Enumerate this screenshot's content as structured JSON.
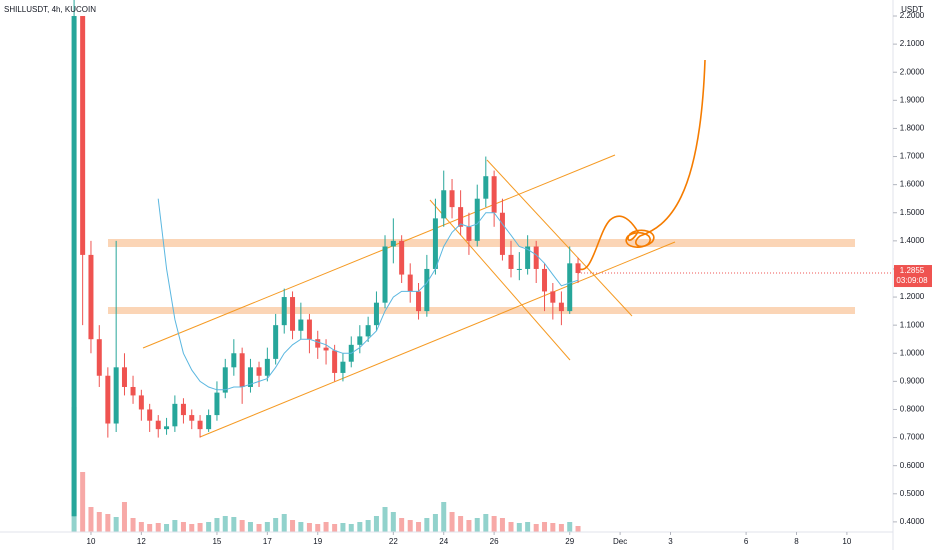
{
  "chart_data": {
    "type": "candlestick",
    "title": "SHILLUSDT, 4h, KUCOIN",
    "currency": "USDT",
    "x": [
      9.33,
      9.67,
      10,
      10.33,
      10.67,
      11,
      11.33,
      11.67,
      12,
      12.33,
      12.67,
      13,
      13.33,
      13.67,
      14,
      14.33,
      14.67,
      15,
      15.33,
      15.67,
      16,
      16.33,
      16.67,
      17,
      17.33,
      17.67,
      18,
      18.33,
      18.67,
      19,
      19.33,
      19.67,
      20,
      20.33,
      20.67,
      21,
      21.33,
      21.67,
      22,
      22.33,
      22.67,
      23,
      23.33,
      23.67,
      24,
      24.33,
      24.67,
      25,
      25.33,
      25.67,
      26,
      26.33,
      26.67,
      27,
      27.33,
      27.67,
      28,
      28.33,
      28.67,
      29,
      29.33
    ],
    "open": [
      0.42,
      2.2,
      1.35,
      1.05,
      0.92,
      0.75,
      0.95,
      0.88,
      0.85,
      0.8,
      0.76,
      0.73,
      0.74,
      0.82,
      0.78,
      0.76,
      0.73,
      0.78,
      0.86,
      0.95,
      1.0,
      0.88,
      0.95,
      0.92,
      0.98,
      1.1,
      1.2,
      1.08,
      1.12,
      1.05,
      1.02,
      1.01,
      0.93,
      0.97,
      1.03,
      1.06,
      1.1,
      1.18,
      1.38,
      1.4,
      1.28,
      1.22,
      1.15,
      1.3,
      1.48,
      1.58,
      1.52,
      1.45,
      1.4,
      1.55,
      1.63,
      1.5,
      1.35,
      1.3,
      1.3,
      1.38,
      1.3,
      1.22,
      1.18,
      1.15,
      1.32
    ],
    "high": [
      2.3,
      2.2,
      1.4,
      1.1,
      0.95,
      1.4,
      1.0,
      0.92,
      0.87,
      0.82,
      0.78,
      0.77,
      0.85,
      0.84,
      0.8,
      0.78,
      0.8,
      0.9,
      0.98,
      1.05,
      1.02,
      0.98,
      0.97,
      1.02,
      1.14,
      1.23,
      1.22,
      1.18,
      1.14,
      1.08,
      1.05,
      1.03,
      1.0,
      1.06,
      1.1,
      1.13,
      1.22,
      1.42,
      1.48,
      1.42,
      1.32,
      1.25,
      1.35,
      1.55,
      1.65,
      1.62,
      1.58,
      1.5,
      1.6,
      1.7,
      1.65,
      1.55,
      1.4,
      1.36,
      1.42,
      1.4,
      1.32,
      1.25,
      1.22,
      1.38,
      1.34
    ],
    "low": [
      0.42,
      1.1,
      1.0,
      0.88,
      0.7,
      0.72,
      0.85,
      0.82,
      0.76,
      0.72,
      0.7,
      0.71,
      0.72,
      0.75,
      0.73,
      0.7,
      0.72,
      0.76,
      0.84,
      0.92,
      0.82,
      0.86,
      0.88,
      0.9,
      0.96,
      1.07,
      1.05,
      1.05,
      1.0,
      0.98,
      0.96,
      0.9,
      0.9,
      0.95,
      1.0,
      1.04,
      1.08,
      1.16,
      1.32,
      1.25,
      1.18,
      1.12,
      1.13,
      1.28,
      1.45,
      1.48,
      1.42,
      1.35,
      1.38,
      1.52,
      1.45,
      1.33,
      1.27,
      1.26,
      1.28,
      1.25,
      1.15,
      1.12,
      1.1,
      1.14,
      1.25
    ],
    "close": [
      2.2,
      1.35,
      1.05,
      0.92,
      0.75,
      0.95,
      0.88,
      0.85,
      0.8,
      0.76,
      0.73,
      0.74,
      0.82,
      0.78,
      0.76,
      0.73,
      0.78,
      0.86,
      0.95,
      1.0,
      0.88,
      0.95,
      0.92,
      0.98,
      1.1,
      1.2,
      1.08,
      1.12,
      1.05,
      1.02,
      1.01,
      0.93,
      0.97,
      1.03,
      1.06,
      1.1,
      1.18,
      1.38,
      1.4,
      1.28,
      1.22,
      1.15,
      1.3,
      1.48,
      1.58,
      1.52,
      1.45,
      1.4,
      1.55,
      1.63,
      1.5,
      1.35,
      1.3,
      1.3,
      1.38,
      1.3,
      1.22,
      1.18,
      1.15,
      1.32,
      1.2855
    ],
    "volume": [
      125,
      60,
      25,
      20,
      18,
      15,
      30,
      14,
      10,
      8,
      9,
      8,
      12,
      10,
      8,
      9,
      10,
      14,
      16,
      15,
      12,
      10,
      8,
      10,
      14,
      18,
      12,
      10,
      9,
      8,
      10,
      8,
      9,
      8,
      10,
      12,
      16,
      25,
      20,
      14,
      12,
      10,
      14,
      18,
      30,
      20,
      16,
      12,
      14,
      18,
      16,
      14,
      10,
      9,
      10,
      8,
      10,
      9,
      8,
      10,
      6
    ],
    "ma": [
      null,
      null,
      null,
      null,
      null,
      null,
      null,
      null,
      null,
      null,
      1.55,
      1.3,
      1.12,
      1.0,
      0.94,
      0.9,
      0.88,
      0.87,
      0.87,
      0.88,
      0.88,
      0.89,
      0.9,
      0.91,
      0.95,
      1.0,
      1.03,
      1.05,
      1.05,
      1.04,
      1.03,
      1.01,
      1.0,
      1.0,
      1.02,
      1.05,
      1.08,
      1.15,
      1.2,
      1.22,
      1.22,
      1.22,
      1.25,
      1.3,
      1.38,
      1.43,
      1.46,
      1.45,
      1.46,
      1.5,
      1.5,
      1.46,
      1.42,
      1.38,
      1.37,
      1.35,
      1.32,
      1.28,
      1.24,
      1.25,
      1.26
    ],
    "up_color": "#26a69a",
    "down_color": "#ef5350",
    "ma_color": "#5bb7e0",
    "last_price": 1.2855,
    "countdown": "03:09:08",
    "xlim": [
      6.39,
      41.83
    ],
    "xticks": [
      10,
      12,
      15,
      17,
      19,
      22,
      24,
      26,
      29,
      {
        "value": 31,
        "label": "Dec"
      },
      {
        "value": 33,
        "label": "3"
      },
      {
        "value": 36,
        "label": "6"
      },
      {
        "value": 38,
        "label": "8"
      },
      {
        "value": 40,
        "label": "10"
      }
    ],
    "ylim": [
      0.364,
      2.257
    ],
    "yticks": [
      {
        "value": 0.4,
        "label": "0.4000"
      },
      {
        "value": 0.5,
        "label": "0.5000"
      },
      {
        "value": 0.6,
        "label": "0.6000"
      },
      {
        "value": 0.7,
        "label": "0.7000"
      },
      {
        "value": 0.8,
        "label": "0.8000"
      },
      {
        "value": 0.9,
        "label": "0.9000"
      },
      {
        "value": 1.0,
        "label": "1.0000"
      },
      {
        "value": 1.1,
        "label": "1.1000"
      },
      {
        "value": 1.2,
        "label": "1.2000"
      },
      {
        "value": 1.3,
        "label": "1.3000"
      },
      {
        "value": 1.4,
        "label": "1.4000"
      },
      {
        "value": 1.5,
        "label": "1.5000"
      },
      {
        "value": 1.6,
        "label": "1.6000"
      },
      {
        "value": 1.7,
        "label": "1.7000"
      },
      {
        "value": 1.8,
        "label": "1.8000"
      },
      {
        "value": 1.9,
        "label": "1.9000"
      },
      {
        "value": 2.0,
        "label": "2.0000"
      },
      {
        "value": 2.1,
        "label": "2.1000"
      },
      {
        "value": 2.2,
        "label": "2.2000"
      }
    ],
    "vlim": [
      0,
      130
    ]
  }
}
